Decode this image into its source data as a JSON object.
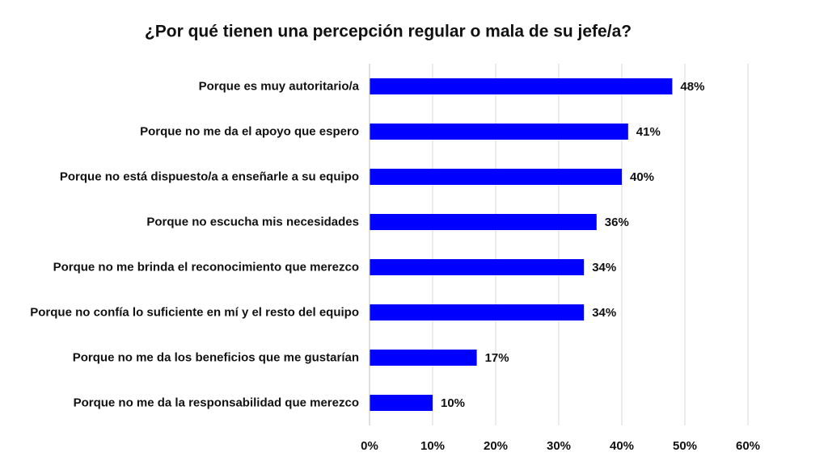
{
  "chart_data": {
    "type": "bar",
    "orientation": "horizontal",
    "title": "¿Por qué tienen una percepción regular o mala de su jefe/a?",
    "categories": [
      "Porque es muy autoritario/a",
      "Porque no me da el apoyo que espero",
      "Porque no está dispuesto/a a enseñarle a su equipo",
      "Porque no escucha mis necesidades",
      "Porque no me brinda el reconocimiento que merezco",
      "Porque no confía lo suficiente en mí y el resto del equipo",
      "Porque no me da los beneficios que me gustarían",
      "Porque no me da la responsabilidad que merezco"
    ],
    "values": [
      48,
      41,
      40,
      36,
      34,
      34,
      17,
      10
    ],
    "value_labels": [
      "48%",
      "41%",
      "40%",
      "36%",
      "34%",
      "34%",
      "17%",
      "10%"
    ],
    "color": "#0000ff",
    "xlim": [
      0,
      60
    ],
    "xticks": [
      {
        "value": 0,
        "label": "0%"
      },
      {
        "value": 10,
        "label": "10%"
      },
      {
        "value": 20,
        "label": "20%"
      },
      {
        "value": 30,
        "label": "30%"
      },
      {
        "value": 40,
        "label": "40%"
      },
      {
        "value": 50,
        "label": "50%"
      },
      {
        "value": 60,
        "label": "60%"
      }
    ],
    "grid": true
  }
}
